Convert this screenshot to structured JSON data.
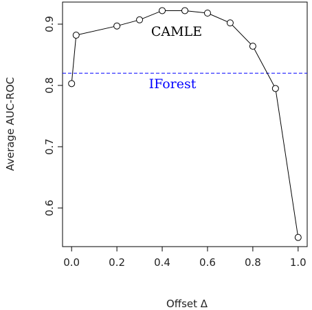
{
  "chart_data": {
    "type": "line",
    "x_label": "Offset Δ",
    "y_label": "Average AUC-ROC",
    "x": [
      0.0,
      0.02,
      0.2,
      0.3,
      0.4,
      0.5,
      0.6,
      0.7,
      0.8,
      0.9,
      1.0
    ],
    "series": [
      {
        "color": "#000000",
        "values": [
          0.803,
          0.882,
          0.897,
          0.907,
          0.922,
          0.922,
          0.918,
          0.902,
          0.864,
          0.795,
          0.552
        ]
      }
    ],
    "hline": {
      "value": 0.82,
      "color": "#0000ff",
      "dashed": true
    },
    "annotations": [
      {
        "text": "CAMLE",
        "color": "#000000"
      },
      {
        "text": "IForest",
        "color": "#0000ff"
      }
    ],
    "xlim": [
      -0.04,
      1.04
    ],
    "ylim": [
      0.537,
      0.936
    ],
    "xticks": [
      {
        "value": 0,
        "label": "0.0"
      },
      0.2,
      0.4,
      0.6,
      0.8,
      {
        "value": 1,
        "label": "1.0"
      }
    ],
    "yticks": [
      0.6,
      0.7,
      0.8,
      0.9
    ]
  }
}
